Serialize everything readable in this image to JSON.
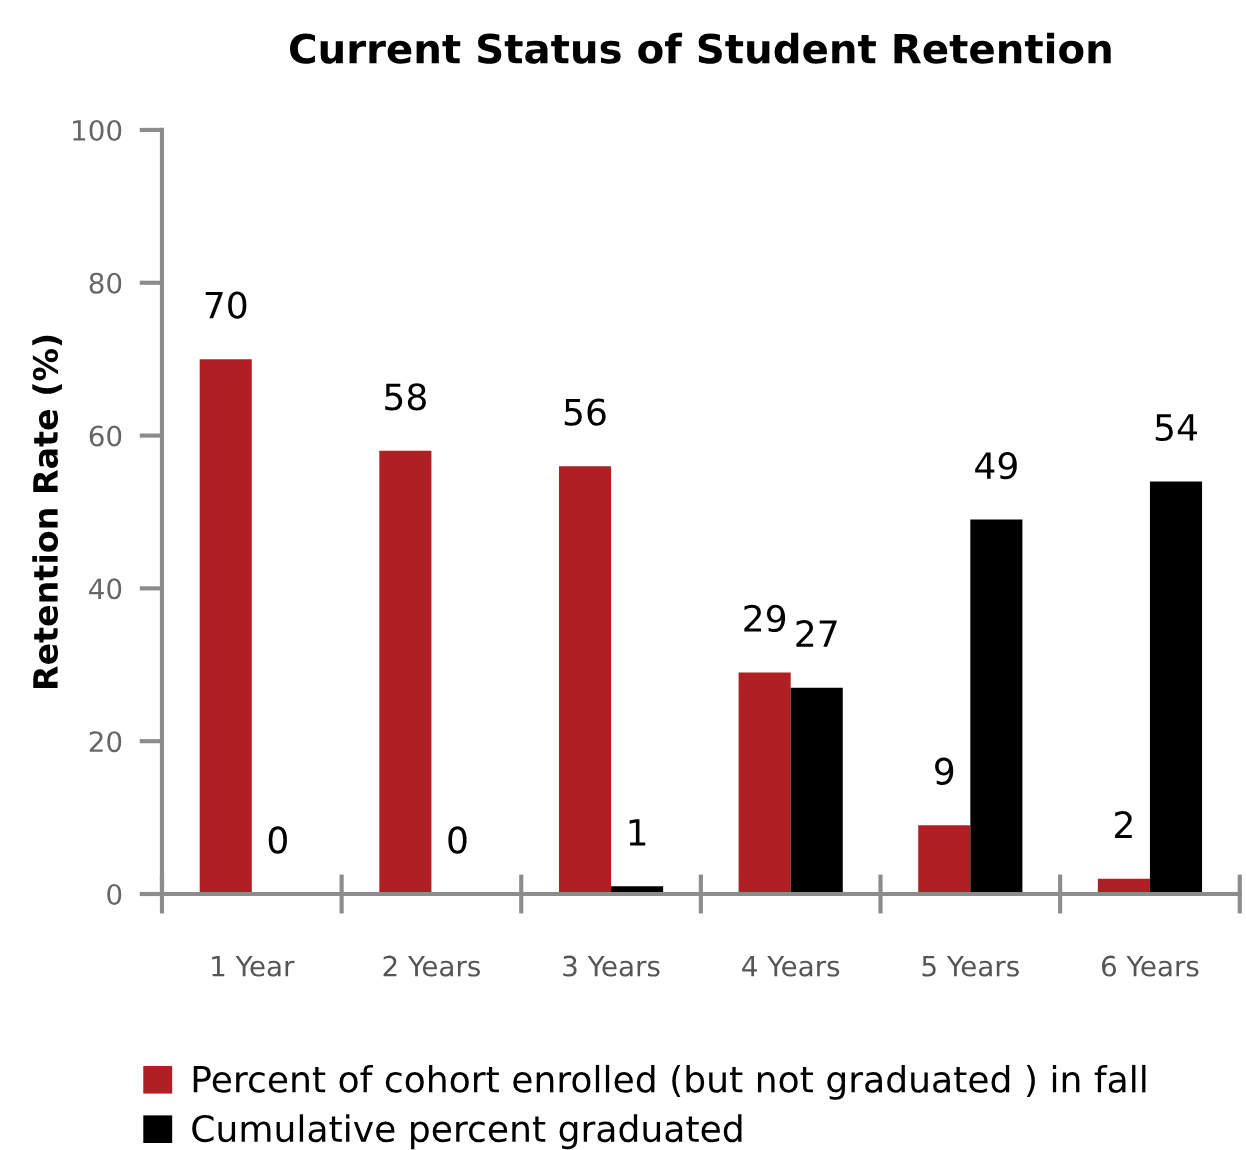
{
  "chart_data": {
    "type": "bar",
    "title": "Current Status of Student Retention",
    "ylabel": "Retention Rate (%)",
    "categories": [
      "1 Year",
      "2 Years",
      "3 Years",
      "4 Years",
      "5 Years",
      "6 Years"
    ],
    "series": [
      {
        "name": "Percent of cohort enrolled (but not graduated ) in fall",
        "color": "#b01f24",
        "values": [
          70,
          58,
          56,
          29,
          9,
          2
        ]
      },
      {
        "name": "Cumulative percent graduated",
        "color": "#000000",
        "values": [
          0,
          0,
          1,
          27,
          49,
          54
        ]
      }
    ],
    "ylim": [
      0,
      100
    ],
    "yticks": [
      0,
      20,
      40,
      60,
      80,
      100
    ],
    "data_labels": true,
    "grid": false,
    "legend": "bottom"
  }
}
